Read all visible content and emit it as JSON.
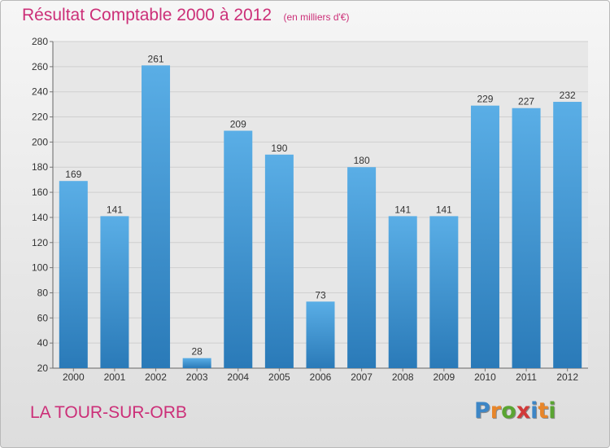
{
  "header": {
    "title": "Résultat Comptable 2000 à 2012",
    "subtitle": "(en milliers d'€)"
  },
  "commune": "LA TOUR-SUR-ORB",
  "logo": {
    "text": "Proxiti",
    "letters": [
      {
        "char": "P",
        "color": "#3d86c6"
      },
      {
        "char": "r",
        "color": "#e8862a"
      },
      {
        "char": "o",
        "color": "#5aa532"
      },
      {
        "char": "x",
        "color": "#d13a3a"
      },
      {
        "char": "i",
        "color": "#3d86c6"
      },
      {
        "char": "t",
        "color": "#e8862a"
      },
      {
        "char": "i",
        "color": "#5aa532"
      }
    ]
  },
  "colors": {
    "bar_light": "#5aaee6",
    "bar_dark": "#2a7ab8",
    "accent": "#cc2f78"
  },
  "chart_data": {
    "type": "bar",
    "title": "Résultat Comptable 2000 à 2012",
    "subtitle": "(en milliers d'€)",
    "categories": [
      "2000",
      "2001",
      "2002",
      "2003",
      "2004",
      "2005",
      "2006",
      "2007",
      "2008",
      "2009",
      "2010",
      "2011",
      "2012"
    ],
    "values": [
      169,
      141,
      261,
      28,
      209,
      190,
      73,
      180,
      141,
      141,
      229,
      227,
      232
    ],
    "ylim": [
      20,
      280
    ],
    "yticks": [
      20,
      40,
      60,
      80,
      100,
      120,
      140,
      160,
      180,
      200,
      220,
      240,
      260,
      280
    ],
    "xlabel": "",
    "ylabel": "",
    "grid": true,
    "legend": "none",
    "data_labels": true
  }
}
